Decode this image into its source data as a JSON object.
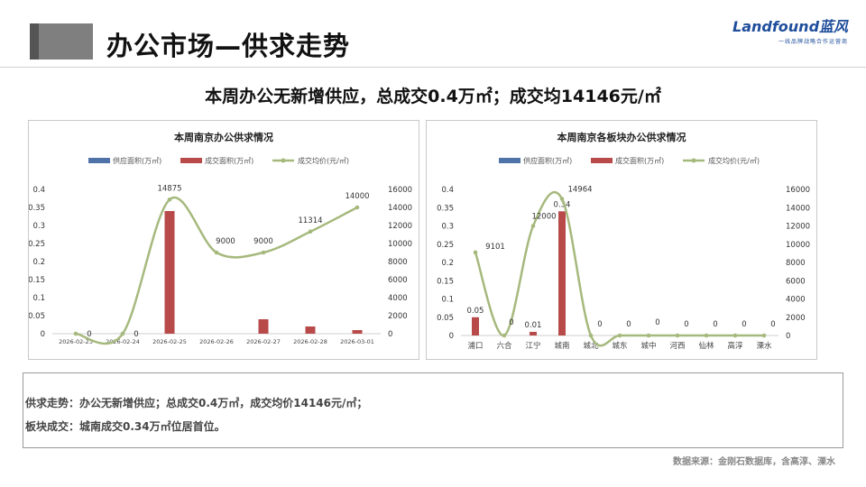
{
  "header": {
    "title": "办公市场—供求走势",
    "logo_text": "Landfound蓝风",
    "logo_sub": "一线品牌战略合作运营商"
  },
  "headline": "本周办公无新增供应，总成交0.4万㎡；成交均14146元/㎡",
  "legend": {
    "supply": "供应面积(万㎡)",
    "deal": "成交面积(万㎡)",
    "price": "成交均价(元/㎡)"
  },
  "colors": {
    "supply": "#4f72a8",
    "deal": "#b94a4a",
    "price": "#a6b97d"
  },
  "chart_data": [
    {
      "type": "bar",
      "title": "本周南京办公供求情况",
      "categories": [
        "2026-02-23",
        "2026-02-24",
        "2026-02-25",
        "2026-02-26",
        "2026-02-27",
        "2026-02-28",
        "2026-03-01"
      ],
      "series": [
        {
          "name": "供应面积(万㎡)",
          "kind": "bar",
          "axis": "left",
          "values": [
            0,
            0,
            0,
            0,
            0,
            0,
            0
          ]
        },
        {
          "name": "成交面积(万㎡)",
          "kind": "bar",
          "axis": "left",
          "values": [
            0,
            0,
            0.34,
            0,
            0.04,
            0.02,
            0.01
          ]
        },
        {
          "name": "成交均价(元/㎡)",
          "kind": "line",
          "axis": "right",
          "values": [
            0,
            0,
            14875,
            9000,
            9000,
            11314,
            14000
          ]
        }
      ],
      "price_labels": [
        "0",
        "0",
        "14875",
        "9000",
        "9000",
        "11314",
        "14000"
      ],
      "y_left": {
        "min": 0,
        "max": 0.4,
        "ticks": [
          "0",
          "0.05",
          "0.1",
          "0.15",
          "0.2",
          "0.25",
          "0.3",
          "0.35",
          "0.4"
        ]
      },
      "y_right": {
        "min": 0,
        "max": 16000,
        "ticks": [
          "0",
          "2000",
          "4000",
          "6000",
          "8000",
          "10000",
          "12000",
          "14000",
          "16000"
        ]
      },
      "legend_position": "top"
    },
    {
      "type": "bar",
      "title": "本周南京各板块办公供求情况",
      "categories": [
        "浦口",
        "六合",
        "江宁",
        "城南",
        "城北",
        "城东",
        "城中",
        "河西",
        "仙林",
        "高淳",
        "溧水"
      ],
      "series": [
        {
          "name": "供应面积(万㎡)",
          "kind": "bar",
          "axis": "left",
          "values": [
            0,
            0,
            0,
            0,
            0,
            0,
            0,
            0,
            0,
            0,
            0
          ]
        },
        {
          "name": "成交面积(万㎡)",
          "kind": "bar",
          "axis": "left",
          "values": [
            0.05,
            0,
            0.01,
            0.34,
            0,
            0,
            0,
            0,
            0,
            0,
            0
          ]
        },
        {
          "name": "成交均价(元/㎡)",
          "kind": "line",
          "axis": "right",
          "values": [
            9101,
            0,
            12000,
            14964,
            0,
            0,
            0,
            0,
            0,
            0,
            0
          ]
        }
      ],
      "deal_labels": [
        "0.05",
        "",
        "0.01",
        "0.34",
        "",
        "",
        "",
        "",
        "",
        "",
        ""
      ],
      "price_labels": [
        "9101",
        "0",
        "12000",
        "14964",
        "0",
        "0",
        "0",
        "0",
        "0",
        "0",
        "0"
      ],
      "y_left": {
        "min": 0,
        "max": 0.4,
        "ticks": [
          "0",
          "0.05",
          "0.1",
          "0.15",
          "0.2",
          "0.25",
          "0.3",
          "0.35",
          "0.4"
        ]
      },
      "y_right": {
        "min": 0,
        "max": 16000,
        "ticks": [
          "0",
          "2000",
          "4000",
          "6000",
          "8000",
          "10000",
          "12000",
          "14000",
          "16000"
        ]
      },
      "legend_position": "top"
    }
  ],
  "summary": {
    "line1": "供求走势：办公无新增供应；总成交0.4万㎡，成交均价14146元/㎡；",
    "line2": "板块成交：城南成交0.34万㎡位居首位。"
  },
  "source": "数据来源：金刚石数据库，含高淳、溧水"
}
